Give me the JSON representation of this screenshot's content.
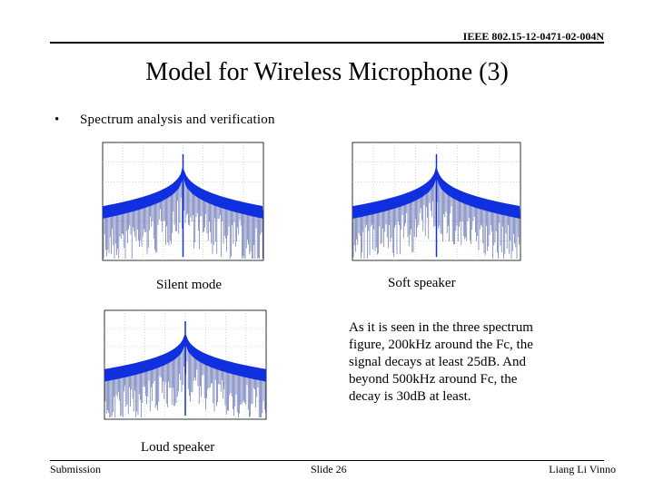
{
  "header": {
    "doc_id": "IEEE 802.15-12-0471-02-004N"
  },
  "title": "Model for Wireless Microphone (3)",
  "bullet": "Spectrum analysis and verification",
  "figures": [
    {
      "caption": "Silent mode"
    },
    {
      "caption": "Soft speaker"
    },
    {
      "caption": "Loud speaker"
    }
  ],
  "body": "As it is seen in the three spectrum figure, 200kHz around the Fc, the signal decays at least 25dB. And beyond 500kHz around Fc, the decay is 30dB at least.",
  "footer": {
    "left": "Submission",
    "center": "Slide 26",
    "right": "Liang Li Vinno"
  }
}
